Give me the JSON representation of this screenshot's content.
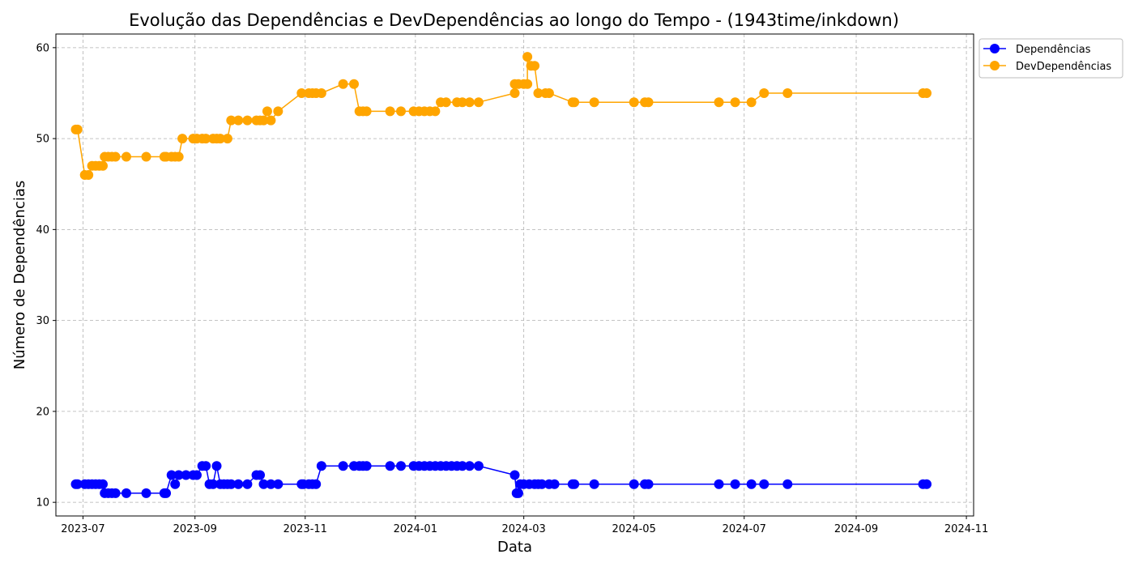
{
  "chart_data": {
    "type": "line",
    "title": "Evolução das Dependências e DevDependências ao longo do Tempo - (1943time/inkdown)",
    "xlabel": "Data",
    "ylabel": "Número de Dependências",
    "x_ticks": [
      "2023-07",
      "2023-09",
      "2023-11",
      "2024-01",
      "2024-03",
      "2024-05",
      "2024-07",
      "2024-09",
      "2024-11"
    ],
    "y_ticks": [
      "10",
      "20",
      "30",
      "40",
      "50",
      "60"
    ],
    "xlim": [
      "2023-06-16",
      "2024-11-05"
    ],
    "ylim": [
      8.5,
      61.5
    ],
    "grid": true,
    "legend_position": "top-right-outside",
    "series": [
      {
        "name": "Dependências",
        "color": "#0000ff",
        "points": [
          [
            "2023-06-27",
            12
          ],
          [
            "2023-06-28",
            12
          ],
          [
            "2023-07-02",
            12
          ],
          [
            "2023-07-04",
            12
          ],
          [
            "2023-07-06",
            12
          ],
          [
            "2023-07-08",
            12
          ],
          [
            "2023-07-10",
            12
          ],
          [
            "2023-07-12",
            12
          ],
          [
            "2023-07-13",
            11
          ],
          [
            "2023-07-15",
            11
          ],
          [
            "2023-07-17",
            11
          ],
          [
            "2023-07-19",
            11
          ],
          [
            "2023-07-25",
            11
          ],
          [
            "2023-08-05",
            11
          ],
          [
            "2023-08-15",
            11
          ],
          [
            "2023-08-16",
            11
          ],
          [
            "2023-08-19",
            13
          ],
          [
            "2023-08-21",
            12
          ],
          [
            "2023-08-23",
            13
          ],
          [
            "2023-08-27",
            13
          ],
          [
            "2023-08-31",
            13
          ],
          [
            "2023-09-02",
            13
          ],
          [
            "2023-09-05",
            14
          ],
          [
            "2023-09-07",
            14
          ],
          [
            "2023-09-09",
            12
          ],
          [
            "2023-09-11",
            12
          ],
          [
            "2023-09-13",
            14
          ],
          [
            "2023-09-15",
            12
          ],
          [
            "2023-09-17",
            12
          ],
          [
            "2023-09-19",
            12
          ],
          [
            "2023-09-21",
            12
          ],
          [
            "2023-09-25",
            12
          ],
          [
            "2023-09-30",
            12
          ],
          [
            "2023-10-05",
            13
          ],
          [
            "2023-10-07",
            13
          ],
          [
            "2023-10-09",
            12
          ],
          [
            "2023-10-13",
            12
          ],
          [
            "2023-10-17",
            12
          ],
          [
            "2023-10-30",
            12
          ],
          [
            "2023-10-31",
            12
          ],
          [
            "2023-11-03",
            12
          ],
          [
            "2023-11-05",
            12
          ],
          [
            "2023-11-07",
            12
          ],
          [
            "2023-11-10",
            14
          ],
          [
            "2023-11-22",
            14
          ],
          [
            "2023-11-28",
            14
          ],
          [
            "2023-12-01",
            14
          ],
          [
            "2023-12-03",
            14
          ],
          [
            "2023-12-05",
            14
          ],
          [
            "2023-12-18",
            14
          ],
          [
            "2023-12-24",
            14
          ],
          [
            "2023-12-31",
            14
          ],
          [
            "2024-01-03",
            14
          ],
          [
            "2024-01-06",
            14
          ],
          [
            "2024-01-09",
            14
          ],
          [
            "2024-01-12",
            14
          ],
          [
            "2024-01-15",
            14
          ],
          [
            "2024-01-18",
            14
          ],
          [
            "2024-01-21",
            14
          ],
          [
            "2024-01-24",
            14
          ],
          [
            "2024-01-27",
            14
          ],
          [
            "2024-01-31",
            14
          ],
          [
            "2024-02-05",
            14
          ],
          [
            "2024-02-25",
            13
          ],
          [
            "2024-02-26",
            11
          ],
          [
            "2024-02-27",
            11
          ],
          [
            "2024-02-28",
            12
          ],
          [
            "2024-03-01",
            12
          ],
          [
            "2024-03-04",
            12
          ],
          [
            "2024-03-07",
            12
          ],
          [
            "2024-03-09",
            12
          ],
          [
            "2024-03-11",
            12
          ],
          [
            "2024-03-15",
            12
          ],
          [
            "2024-03-18",
            12
          ],
          [
            "2024-03-28",
            12
          ],
          [
            "2024-03-29",
            12
          ],
          [
            "2024-04-09",
            12
          ],
          [
            "2024-05-01",
            12
          ],
          [
            "2024-05-07",
            12
          ],
          [
            "2024-05-09",
            12
          ],
          [
            "2024-06-17",
            12
          ],
          [
            "2024-06-26",
            12
          ],
          [
            "2024-07-05",
            12
          ],
          [
            "2024-07-12",
            12
          ],
          [
            "2024-07-25",
            12
          ],
          [
            "2024-10-08",
            12
          ],
          [
            "2024-10-10",
            12
          ]
        ]
      },
      {
        "name": "DevDependências",
        "color": "#ffa500",
        "points": [
          [
            "2023-06-27",
            51
          ],
          [
            "2023-06-28",
            51
          ],
          [
            "2023-07-02",
            46
          ],
          [
            "2023-07-04",
            46
          ],
          [
            "2023-07-06",
            47
          ],
          [
            "2023-07-08",
            47
          ],
          [
            "2023-07-10",
            47
          ],
          [
            "2023-07-12",
            47
          ],
          [
            "2023-07-13",
            48
          ],
          [
            "2023-07-15",
            48
          ],
          [
            "2023-07-17",
            48
          ],
          [
            "2023-07-19",
            48
          ],
          [
            "2023-07-25",
            48
          ],
          [
            "2023-08-05",
            48
          ],
          [
            "2023-08-15",
            48
          ],
          [
            "2023-08-16",
            48
          ],
          [
            "2023-08-19",
            48
          ],
          [
            "2023-08-21",
            48
          ],
          [
            "2023-08-23",
            48
          ],
          [
            "2023-08-25",
            50
          ],
          [
            "2023-08-31",
            50
          ],
          [
            "2023-09-02",
            50
          ],
          [
            "2023-09-05",
            50
          ],
          [
            "2023-09-07",
            50
          ],
          [
            "2023-09-11",
            50
          ],
          [
            "2023-09-13",
            50
          ],
          [
            "2023-09-15",
            50
          ],
          [
            "2023-09-19",
            50
          ],
          [
            "2023-09-21",
            52
          ],
          [
            "2023-09-25",
            52
          ],
          [
            "2023-09-30",
            52
          ],
          [
            "2023-10-05",
            52
          ],
          [
            "2023-10-07",
            52
          ],
          [
            "2023-10-09",
            52
          ],
          [
            "2023-10-11",
            53
          ],
          [
            "2023-10-13",
            52
          ],
          [
            "2023-10-17",
            53
          ],
          [
            "2023-10-30",
            55
          ],
          [
            "2023-11-03",
            55
          ],
          [
            "2023-11-05",
            55
          ],
          [
            "2023-11-07",
            55
          ],
          [
            "2023-11-10",
            55
          ],
          [
            "2023-11-22",
            56
          ],
          [
            "2023-11-28",
            56
          ],
          [
            "2023-12-01",
            53
          ],
          [
            "2023-12-03",
            53
          ],
          [
            "2023-12-05",
            53
          ],
          [
            "2023-12-18",
            53
          ],
          [
            "2023-12-24",
            53
          ],
          [
            "2023-12-31",
            53
          ],
          [
            "2024-01-03",
            53
          ],
          [
            "2024-01-06",
            53
          ],
          [
            "2024-01-09",
            53
          ],
          [
            "2024-01-12",
            53
          ],
          [
            "2024-01-15",
            54
          ],
          [
            "2024-01-18",
            54
          ],
          [
            "2024-01-24",
            54
          ],
          [
            "2024-01-27",
            54
          ],
          [
            "2024-01-31",
            54
          ],
          [
            "2024-02-05",
            54
          ],
          [
            "2024-02-25",
            55
          ],
          [
            "2024-02-25",
            56
          ],
          [
            "2024-02-27",
            56
          ],
          [
            "2024-03-01",
            56
          ],
          [
            "2024-03-03",
            56
          ],
          [
            "2024-03-03",
            59
          ],
          [
            "2024-03-05",
            58
          ],
          [
            "2024-03-07",
            58
          ],
          [
            "2024-03-09",
            55
          ],
          [
            "2024-03-13",
            55
          ],
          [
            "2024-03-15",
            55
          ],
          [
            "2024-03-28",
            54
          ],
          [
            "2024-03-29",
            54
          ],
          [
            "2024-04-09",
            54
          ],
          [
            "2024-05-01",
            54
          ],
          [
            "2024-05-07",
            54
          ],
          [
            "2024-05-09",
            54
          ],
          [
            "2024-06-17",
            54
          ],
          [
            "2024-06-26",
            54
          ],
          [
            "2024-07-05",
            54
          ],
          [
            "2024-07-12",
            55
          ],
          [
            "2024-07-25",
            55
          ],
          [
            "2024-10-08",
            55
          ],
          [
            "2024-10-10",
            55
          ]
        ]
      }
    ]
  }
}
